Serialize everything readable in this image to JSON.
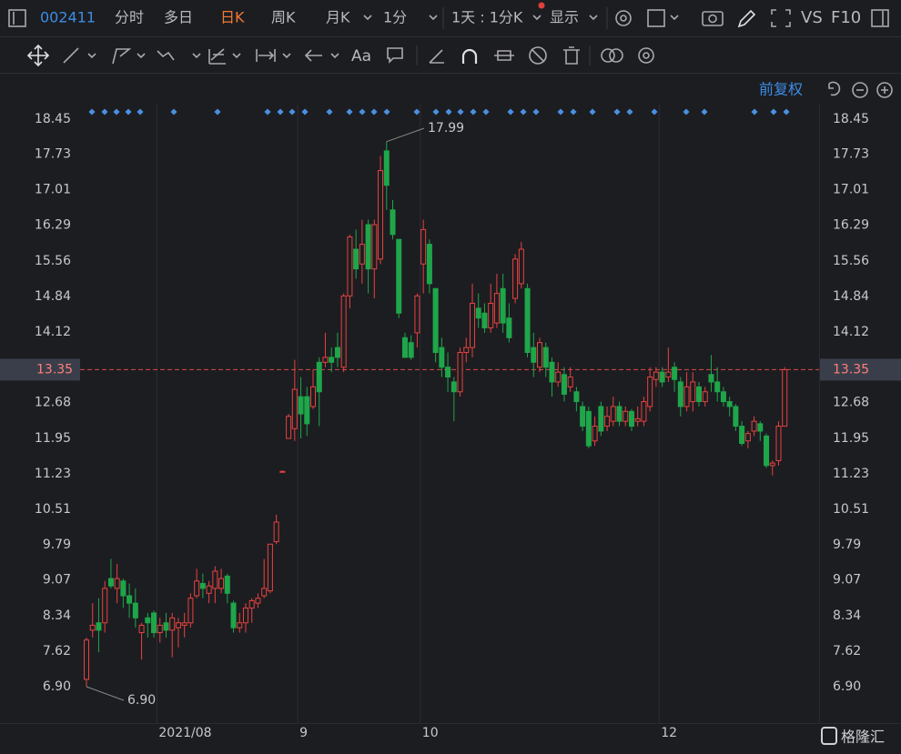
{
  "toolbar": {
    "code": "002411",
    "tabs": [
      "分时",
      "多日",
      "日K",
      "周K",
      "月K",
      "1分"
    ],
    "range": "1天 : 1分K",
    "display": "显示",
    "vs": "VS",
    "f10": "F10",
    "adjust": "前复权",
    "watermark": "格隆汇"
  },
  "chart_data": {
    "type": "candlestick",
    "categories": [
      null,
      null,
      null,
      null,
      null,
      null,
      null,
      null,
      null,
      null,
      null,
      null,
      "2021/08",
      null,
      null,
      null,
      null,
      null,
      null,
      null,
      null,
      null,
      null,
      null,
      null,
      null,
      null,
      null,
      null,
      null,
      null,
      null,
      null,
      null,
      null,
      "9",
      null,
      null,
      null,
      null,
      null,
      null,
      null,
      null,
      null,
      null,
      null,
      null,
      null,
      null,
      null,
      null,
      null,
      null,
      null,
      "10",
      null,
      null,
      null,
      null,
      null,
      null,
      null,
      null,
      null,
      null,
      null,
      null,
      null,
      null,
      null,
      null,
      null,
      null,
      null,
      null,
      null,
      null,
      null,
      null,
      null,
      null,
      null,
      null,
      null,
      null,
      null,
      null,
      null,
      null,
      null,
      null,
      null,
      null,
      "12",
      null,
      null,
      null,
      null,
      null,
      null,
      null,
      null,
      null,
      null,
      null,
      null,
      null,
      null,
      null,
      null,
      null,
      null,
      null,
      null
    ],
    "open": [
      7.05,
      8.05,
      8.2,
      8.2,
      9.1,
      8.9,
      9.05,
      8.75,
      8.6,
      8.0,
      8.3,
      8.4,
      8.0,
      8.2,
      8.05,
      8.1,
      8.15,
      8.2,
      8.75,
      9.0,
      8.8,
      8.9,
      8.9,
      9.15,
      8.6,
      8.1,
      8.2,
      8.5,
      8.6,
      8.75,
      8.85,
      9.85,
      11.28,
      11.95,
      12.15,
      12.8,
      12.8,
      12.6,
      13.5,
      13.5,
      13.6,
      13.8,
      13.4,
      14.85,
      15.8,
      15.5,
      16.3,
      15.4,
      15.6,
      17.8,
      16.6,
      16.0,
      14.0,
      13.9,
      14.1,
      15.5,
      15.9,
      15.0,
      13.8,
      13.4,
      13.1,
      12.9,
      13.7,
      13.8,
      14.6,
      14.5,
      14.2,
      14.3,
      15.0,
      14.4,
      14.8,
      15.1,
      15.0,
      13.8,
      13.4,
      13.8,
      13.5,
      13.1,
      13.25,
      13.0,
      12.9,
      12.6,
      12.5,
      11.9,
      12.6,
      12.2,
      12.3,
      12.6,
      12.3,
      12.5,
      12.3,
      12.3,
      12.6,
      13.15,
      13.3,
      13.2,
      13.4,
      13.1,
      12.6,
      12.7,
      13.0,
      12.7,
      13.25,
      13.1,
      12.9,
      12.7,
      12.6,
      12.2,
      11.9,
      12.1,
      12.25,
      12.0,
      11.4,
      11.5,
      12.2
    ],
    "high": [
      7.9,
      8.6,
      8.7,
      9.05,
      9.5,
      9.4,
      9.1,
      9.0,
      8.9,
      8.2,
      8.4,
      8.45,
      8.3,
      8.4,
      8.4,
      8.3,
      8.4,
      8.8,
      9.3,
      9.2,
      9.05,
      9.35,
      9.3,
      9.2,
      8.65,
      8.4,
      8.6,
      8.7,
      8.8,
      9.5,
      9.8,
      10.4,
      11.3,
      12.45,
      13.55,
      13.2,
      13.0,
      13.35,
      13.6,
      14.1,
      13.8,
      14.1,
      14.9,
      16.1,
      16.2,
      16.4,
      16.4,
      16.4,
      17.7,
      17.99,
      16.8,
      16.0,
      14.1,
      14.05,
      14.9,
      16.4,
      16.0,
      15.0,
      14.0,
      13.7,
      13.2,
      13.8,
      14.0,
      15.1,
      14.9,
      14.7,
      15.1,
      15.3,
      15.3,
      14.7,
      15.7,
      15.95,
      15.1,
      14.1,
      14.0,
      13.9,
      13.6,
      13.5,
      13.4,
      13.4,
      13.0,
      12.7,
      12.6,
      12.4,
      12.7,
      12.6,
      12.8,
      12.7,
      12.6,
      12.55,
      12.6,
      12.8,
      13.4,
      13.4,
      13.4,
      13.8,
      13.5,
      13.2,
      13.3,
      13.3,
      13.1,
      13.0,
      13.65,
      13.4,
      13.0,
      12.8,
      12.65,
      12.3,
      12.1,
      12.4,
      12.3,
      12.05,
      11.5,
      12.3,
      13.4
    ],
    "low": [
      6.9,
      7.9,
      7.6,
      8.0,
      8.9,
      8.6,
      8.5,
      8.3,
      8.1,
      7.45,
      7.9,
      7.9,
      7.8,
      7.9,
      7.5,
      7.7,
      7.9,
      8.1,
      8.7,
      8.7,
      8.6,
      8.6,
      8.8,
      8.6,
      8.0,
      8.0,
      8.0,
      8.2,
      8.5,
      8.7,
      8.8,
      9.8,
      11.28,
      11.95,
      11.9,
      11.95,
      12.0,
      12.55,
      12.2,
      13.4,
      13.3,
      13.4,
      13.3,
      14.6,
      15.2,
      15.1,
      14.9,
      14.8,
      15.5,
      16.6,
      16.0,
      14.4,
      13.6,
      13.55,
      13.8,
      14.9,
      14.9,
      13.5,
      13.2,
      12.9,
      12.3,
      12.8,
      13.5,
      13.6,
      14.2,
      14.1,
      14.1,
      14.2,
      14.1,
      13.9,
      14.7,
      15.0,
      13.6,
      13.2,
      13.3,
      13.2,
      12.8,
      13.0,
      12.7,
      12.9,
      12.5,
      12.1,
      11.75,
      11.8,
      12.0,
      12.1,
      12.2,
      12.2,
      12.2,
      12.1,
      12.2,
      12.2,
      12.5,
      13.0,
      13.0,
      13.1,
      12.9,
      12.4,
      12.5,
      12.5,
      12.6,
      12.6,
      12.9,
      12.7,
      12.6,
      12.4,
      12.1,
      11.8,
      11.75,
      12.0,
      11.9,
      11.35,
      11.2,
      11.4,
      12.2
    ],
    "close": [
      7.85,
      8.15,
      8.05,
      8.9,
      8.95,
      9.1,
      8.75,
      8.6,
      8.3,
      8.15,
      8.2,
      8.0,
      8.15,
      8.05,
      8.3,
      8.2,
      8.2,
      8.7,
      9.05,
      8.9,
      8.95,
      9.25,
      9.1,
      8.8,
      8.1,
      8.2,
      8.5,
      8.65,
      8.7,
      8.9,
      9.8,
      10.25,
      11.28,
      12.4,
      12.95,
      12.45,
      12.25,
      13.0,
      12.9,
      13.6,
      13.5,
      13.6,
      14.85,
      16.05,
      15.4,
      15.9,
      15.4,
      16.3,
      17.4,
      17.1,
      16.1,
      14.5,
      13.6,
      13.6,
      14.85,
      16.2,
      15.1,
      13.7,
      13.4,
      13.2,
      12.9,
      13.7,
      13.8,
      14.7,
      14.4,
      14.2,
      14.7,
      14.9,
      14.3,
      14.0,
      15.6,
      15.8,
      13.7,
      13.5,
      13.9,
      13.4,
      13.1,
      13.3,
      12.85,
      13.2,
      12.7,
      12.2,
      11.8,
      12.2,
      12.1,
      12.4,
      12.6,
      12.3,
      12.5,
      12.2,
      12.35,
      12.7,
      13.2,
      13.3,
      13.1,
      13.3,
      13.15,
      12.6,
      13.0,
      13.1,
      12.7,
      12.9,
      13.1,
      12.9,
      12.7,
      12.6,
      12.2,
      11.85,
      12.05,
      12.3,
      12.1,
      11.4,
      11.45,
      12.2,
      13.35
    ],
    "up_color": "#e8423f",
    "down_color": "#1fa64a",
    "ylim": [
      6.16,
      19.02
    ],
    "yticks": [
      18.45,
      17.73,
      17.01,
      16.29,
      15.56,
      14.84,
      14.12,
      12.68,
      11.95,
      11.23,
      10.51,
      9.79,
      9.07,
      8.34,
      7.62,
      {
        "value": 6.9,
        "label": "6.90"
      }
    ],
    "last_price": 13.35,
    "max_label": 17.99,
    "min_label": {
      "value": 6.9,
      "label": "6.90"
    }
  }
}
